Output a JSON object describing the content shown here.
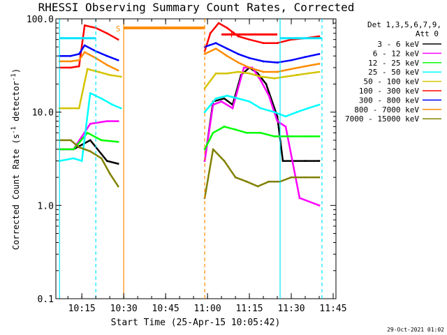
{
  "chart_data": {
    "type": "line",
    "title": "RHESSI Observing Summary Count Rates, Corrected",
    "xlabel": "Start Time (25-Apr-15 10:05:42)",
    "ylabel_main": "Corrected Count Rate (s",
    "ylabel_sup1": "-1",
    "ylabel_mid": " detector",
    "ylabel_sup2": "-1",
    "ylabel_end": ")",
    "xlim": [
      "10:05:42",
      "11:46:00"
    ],
    "ylim": [
      0.1,
      100
    ],
    "yscale": "log",
    "x_ticks": [
      "10:15",
      "10:30",
      "10:45",
      "11:00",
      "11:15",
      "11:30",
      "11:45"
    ],
    "y_ticks": [
      "0.1",
      "1.0",
      "10.0",
      "100.0"
    ],
    "legend_header_1": "Det 1,3,5,6,7,9,",
    "legend_header_2": "Att 0",
    "legend_position": "right",
    "footer_date": "29-Oct-2021 01:02",
    "annotations": [
      "S",
      "F"
    ],
    "series": [
      {
        "name": "3 - 6 keV",
        "color": "#000000",
        "points": [
          [
            "10:07",
            4
          ],
          [
            "10:12",
            4
          ],
          [
            "10:18",
            5
          ],
          [
            "10:24",
            3
          ],
          [
            "10:28",
            2.8
          ],
          [
            "10:59",
            3
          ],
          [
            "11:02",
            13
          ],
          [
            "11:06",
            14
          ],
          [
            "11:09",
            12
          ],
          [
            "11:12",
            25
          ],
          [
            "11:15",
            30
          ],
          [
            "11:18",
            26
          ],
          [
            "11:21",
            20
          ],
          [
            "11:25",
            9
          ],
          [
            "11:27",
            3
          ],
          [
            "11:35",
            3
          ],
          [
            "11:40",
            3
          ]
        ]
      },
      {
        "name": "6 - 12 keV",
        "color": "#ff00ff",
        "points": [
          [
            "10:07",
            4
          ],
          [
            "10:12",
            4
          ],
          [
            "10:18",
            7.5
          ],
          [
            "10:24",
            8
          ],
          [
            "10:28",
            8
          ],
          [
            "10:59",
            3
          ],
          [
            "11:02",
            12
          ],
          [
            "11:05",
            13
          ],
          [
            "11:09",
            11
          ],
          [
            "11:13",
            30
          ],
          [
            "11:16",
            30
          ],
          [
            "11:19",
            22
          ],
          [
            "11:22",
            15
          ],
          [
            "11:25",
            8
          ],
          [
            "11:28",
            7
          ],
          [
            "11:33",
            1.2
          ],
          [
            "11:40",
            1
          ]
        ]
      },
      {
        "name": "12 - 25 keV",
        "color": "#00ff00",
        "points": [
          [
            "10:07",
            4
          ],
          [
            "10:12",
            4
          ],
          [
            "10:17",
            6
          ],
          [
            "10:22",
            5
          ],
          [
            "10:28",
            4.8
          ],
          [
            "10:59",
            4
          ],
          [
            "11:02",
            6
          ],
          [
            "11:06",
            7
          ],
          [
            "11:10",
            6.5
          ],
          [
            "11:14",
            6
          ],
          [
            "11:19",
            6
          ],
          [
            "11:24",
            5.5
          ],
          [
            "11:30",
            5.5
          ],
          [
            "11:35",
            5.5
          ],
          [
            "11:40",
            5.5
          ]
        ]
      },
      {
        "name": "25 - 50 keV",
        "color": "#00ffff",
        "points": [
          [
            "10:07",
            3
          ],
          [
            "10:12",
            3.2
          ],
          [
            "10:15",
            3
          ],
          [
            "10:18",
            16
          ],
          [
            "10:22",
            14
          ],
          [
            "10:26",
            12
          ],
          [
            "10:29",
            11
          ],
          [
            "10:59",
            10
          ],
          [
            "11:03",
            14
          ],
          [
            "11:07",
            15
          ],
          [
            "11:11",
            14
          ],
          [
            "11:15",
            13
          ],
          [
            "11:19",
            11
          ],
          [
            "11:24",
            10
          ],
          [
            "11:28",
            9
          ],
          [
            "11:32",
            10
          ],
          [
            "11:36",
            11
          ],
          [
            "11:40",
            12
          ]
        ]
      },
      {
        "name": "50 - 100 keV",
        "color": "#d4c400",
        "points": [
          [
            "10:07",
            11
          ],
          [
            "10:11",
            11
          ],
          [
            "10:14",
            11
          ],
          [
            "10:17",
            29
          ],
          [
            "10:21",
            27
          ],
          [
            "10:25",
            25
          ],
          [
            "10:29",
            24
          ],
          [
            "10:59",
            18
          ],
          [
            "11:03",
            26
          ],
          [
            "11:07",
            26
          ],
          [
            "11:11",
            27
          ],
          [
            "11:15",
            26
          ],
          [
            "11:19",
            24
          ],
          [
            "11:24",
            23
          ],
          [
            "11:28",
            24
          ],
          [
            "11:32",
            25
          ],
          [
            "11:36",
            26
          ],
          [
            "11:40",
            27
          ]
        ]
      },
      {
        "name": "100 - 300 keV",
        "color": "#ff0000",
        "points": [
          [
            "10:07",
            30
          ],
          [
            "10:11",
            30
          ],
          [
            "10:14",
            31
          ],
          [
            "10:16",
            85
          ],
          [
            "10:20",
            80
          ],
          [
            "10:24",
            70
          ],
          [
            "10:28",
            60
          ],
          [
            "10:59",
            45
          ],
          [
            "11:01",
            70
          ],
          [
            "11:04",
            90
          ],
          [
            "11:07",
            80
          ],
          [
            "11:11",
            65
          ],
          [
            "11:15",
            60
          ],
          [
            "11:20",
            55
          ],
          [
            "11:25",
            55
          ],
          [
            "11:30",
            60
          ],
          [
            "11:35",
            62
          ],
          [
            "11:40",
            65
          ]
        ]
      },
      {
        "name": "300 - 800 keV",
        "color": "#0000ff",
        "points": [
          [
            "10:07",
            40
          ],
          [
            "10:11",
            40
          ],
          [
            "10:14",
            42
          ],
          [
            "10:16",
            52
          ],
          [
            "10:20",
            45
          ],
          [
            "10:24",
            40
          ],
          [
            "10:28",
            36
          ],
          [
            "10:59",
            50
          ],
          [
            "11:03",
            55
          ],
          [
            "11:07",
            48
          ],
          [
            "11:11",
            42
          ],
          [
            "11:15",
            38
          ],
          [
            "11:20",
            35
          ],
          [
            "11:25",
            34
          ],
          [
            "11:30",
            36
          ],
          [
            "11:35",
            39
          ],
          [
            "11:40",
            42
          ]
        ]
      },
      {
        "name": "800 - 7000 keV",
        "color": "#ff8c00",
        "points": [
          [
            "10:07",
            35
          ],
          [
            "10:11",
            35
          ],
          [
            "10:14",
            36
          ],
          [
            "10:16",
            44
          ],
          [
            "10:20",
            38
          ],
          [
            "10:24",
            32
          ],
          [
            "10:28",
            28
          ],
          [
            "10:59",
            42
          ],
          [
            "11:03",
            48
          ],
          [
            "11:07",
            40
          ],
          [
            "11:11",
            34
          ],
          [
            "11:15",
            30
          ],
          [
            "11:20",
            27
          ],
          [
            "11:25",
            27
          ],
          [
            "11:30",
            29
          ],
          [
            "11:35",
            31
          ],
          [
            "11:40",
            33
          ]
        ]
      },
      {
        "name": "7000 - 15000 keV",
        "color": "#808000",
        "points": [
          [
            "10:07",
            5
          ],
          [
            "10:11",
            5
          ],
          [
            "10:14",
            4.2
          ],
          [
            "10:18",
            3.8
          ],
          [
            "10:22",
            3.2
          ],
          [
            "10:25",
            2.2
          ],
          [
            "10:28",
            1.6
          ],
          [
            "10:59",
            1.2
          ],
          [
            "11:02",
            4
          ],
          [
            "11:06",
            3
          ],
          [
            "11:10",
            2
          ],
          [
            "11:14",
            1.8
          ],
          [
            "11:18",
            1.6
          ],
          [
            "11:22",
            1.8
          ],
          [
            "11:26",
            1.8
          ],
          [
            "11:30",
            2
          ],
          [
            "11:35",
            2
          ],
          [
            "11:40",
            2
          ]
        ]
      }
    ]
  }
}
